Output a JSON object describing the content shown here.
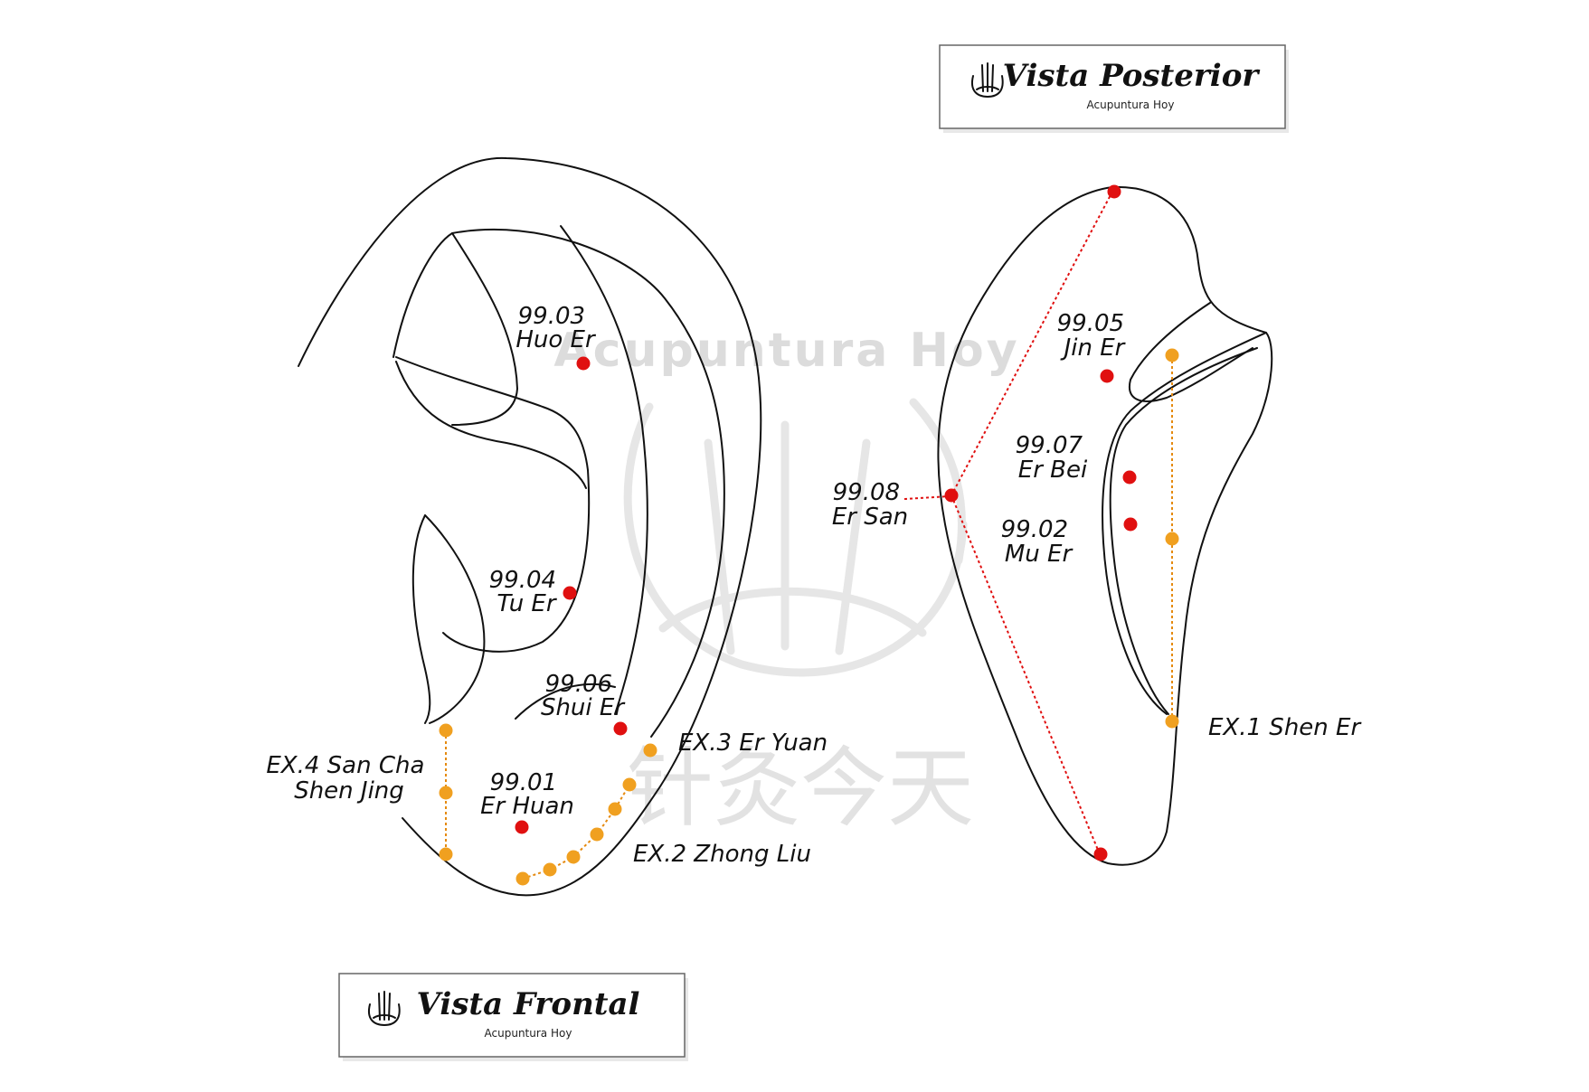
{
  "watermark": {
    "text": "Acupuntura Hoy",
    "cjk": "针灸今天"
  },
  "title_frontal": {
    "title": "Vista Frontal",
    "subtitle": "Acupuntura Hoy"
  },
  "title_posterior": {
    "title": "Vista Posterior",
    "subtitle": "Acupuntura Hoy"
  },
  "colors": {
    "point_red": "#e01010",
    "point_orange": "#f0a020",
    "line_red": "#e01010",
    "line_orange": "#e58a10",
    "outline": "#111111"
  },
  "labels": {
    "huo_er": [
      "99.03",
      "Huo Er"
    ],
    "tu_er": [
      "99.04",
      "Tu Er"
    ],
    "shui_er": [
      "99.06",
      "Shui Er"
    ],
    "er_huan": [
      "99.01",
      "Er Huan"
    ],
    "ex3": [
      "EX.3 Er Yuan"
    ],
    "ex2": [
      "EX.2 Zhong Liu"
    ],
    "ex4": [
      "EX.4 San Cha",
      "Shen Jing"
    ],
    "jin_er": [
      "99.05",
      "Jin Er"
    ],
    "er_bei": [
      "99.07",
      "Er Bei"
    ],
    "er_san": [
      "99.08",
      "Er San"
    ],
    "mu_er": [
      "99.02",
      "Mu Er"
    ],
    "ex1": [
      "EX.1 Shen Er"
    ]
  }
}
